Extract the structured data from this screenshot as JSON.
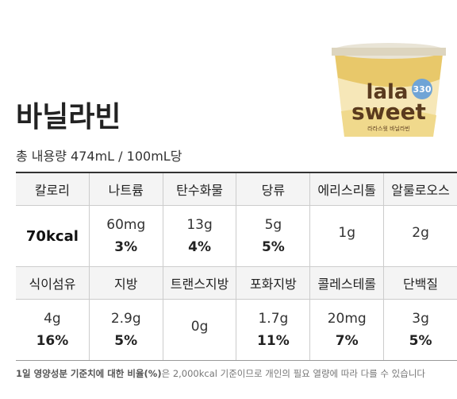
{
  "header": {
    "title": "바닐라빈",
    "subtitle": "총 내용량 474mL / 100mL당"
  },
  "product": {
    "brand_top": "lala",
    "brand_bottom": "sweet",
    "badge": "330",
    "label": "라라스윗 바닐라빈"
  },
  "table": {
    "rows": [
      {
        "cells": [
          {
            "name": "칼로리",
            "amount": "70kcal"
          },
          {
            "name": "나트륨",
            "amount": "60mg",
            "percent": "3%"
          },
          {
            "name": "탄수화물",
            "amount": "13g",
            "percent": "4%"
          },
          {
            "name": "당류",
            "amount": "5g",
            "percent": "5%"
          },
          {
            "name": "에리스리톨",
            "amount": "1g"
          },
          {
            "name": "알룰로오스",
            "amount": "2g"
          }
        ]
      },
      {
        "cells": [
          {
            "name": "식이섬유",
            "amount": "4g",
            "percent": "16%"
          },
          {
            "name": "지방",
            "amount": "2.9g",
            "percent": "5%"
          },
          {
            "name": "트랜스지방",
            "amount": "0g"
          },
          {
            "name": "포화지방",
            "amount": "1.7g",
            "percent": "11%"
          },
          {
            "name": "콜레스테롤",
            "amount": "20mg",
            "percent": "7%"
          },
          {
            "name": "단백질",
            "amount": "3g",
            "percent": "5%"
          }
        ]
      }
    ]
  },
  "footnote": {
    "bold": "1일 영양성분 기준치에 대한 비율(%)",
    "rest": "은 2,000kcal 기준이므로 개인의 필요 열량에 따라 다를 수 있습니다"
  }
}
